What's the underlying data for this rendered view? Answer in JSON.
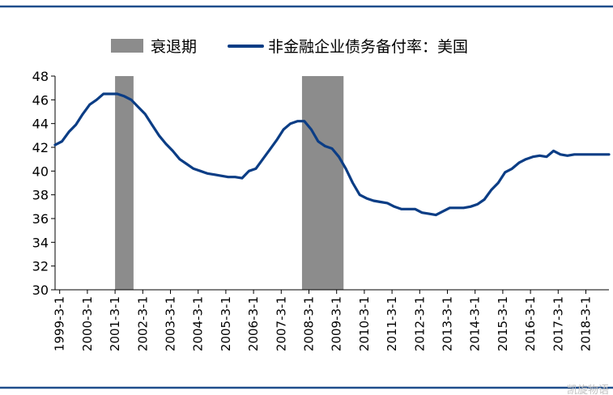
{
  "colors": {
    "rule": "#1f4e8c",
    "line": "#0b3d85",
    "recession": "#8c8c8c",
    "axis": "#000000",
    "text": "#000000"
  },
  "watermark": "凯旋物语",
  "chart_data": {
    "type": "line",
    "title": "",
    "xlabel": "",
    "ylabel": "",
    "ylim": [
      30,
      48
    ],
    "yticks": [
      30,
      32,
      34,
      36,
      38,
      40,
      42,
      44,
      46,
      48
    ],
    "grid": false,
    "legend_position": "top-center",
    "x_tick_labels": [
      "1999-3-1",
      "2000-3-1",
      "2001-3-1",
      "2002-3-1",
      "2003-3-1",
      "2004-3-1",
      "2005-3-1",
      "2006-3-1",
      "2007-3-1",
      "2008-3-1",
      "2009-3-1",
      "2010-3-1",
      "2011-3-1",
      "2012-3-1",
      "2013-3-1",
      "2014-3-1",
      "2015-3-1",
      "2016-3-1",
      "2017-3-1",
      "2018-3-1"
    ],
    "recession": {
      "name": "衰退期",
      "periods": [
        [
          "2001-03",
          "2001-11"
        ],
        [
          "2007-12",
          "2009-06"
        ]
      ]
    },
    "series": [
      {
        "name": "非金融企业债务备付率：美国",
        "x": [
          "1999-01",
          "1999-04",
          "1999-07",
          "1999-10",
          "2000-01",
          "2000-04",
          "2000-07",
          "2000-10",
          "2001-01",
          "2001-04",
          "2001-07",
          "2001-10",
          "2002-01",
          "2002-04",
          "2002-07",
          "2002-10",
          "2003-01",
          "2003-04",
          "2003-07",
          "2003-10",
          "2004-01",
          "2004-04",
          "2004-07",
          "2004-10",
          "2005-01",
          "2005-04",
          "2005-07",
          "2005-10",
          "2006-01",
          "2006-04",
          "2006-07",
          "2006-10",
          "2007-01",
          "2007-04",
          "2007-07",
          "2007-10",
          "2008-01",
          "2008-04",
          "2008-07",
          "2008-10",
          "2009-01",
          "2009-04",
          "2009-07",
          "2009-10",
          "2010-01",
          "2010-04",
          "2010-07",
          "2010-10",
          "2011-01",
          "2011-04",
          "2011-07",
          "2011-10",
          "2012-01",
          "2012-04",
          "2012-07",
          "2012-10",
          "2013-01",
          "2013-04",
          "2013-07",
          "2013-10",
          "2014-01",
          "2014-04",
          "2014-07",
          "2014-10",
          "2015-01",
          "2015-04",
          "2015-07",
          "2015-10",
          "2016-01",
          "2016-04",
          "2016-07",
          "2016-10",
          "2017-01",
          "2017-04",
          "2017-07",
          "2017-10",
          "2018-01",
          "2018-04",
          "2018-07",
          "2018-10",
          "2019-01"
        ],
        "values": [
          42.2,
          42.5,
          43.3,
          43.9,
          44.8,
          45.6,
          46.0,
          46.5,
          46.5,
          46.5,
          46.3,
          46.0,
          45.4,
          44.8,
          43.9,
          43.0,
          42.3,
          41.7,
          41.0,
          40.6,
          40.2,
          40.0,
          39.8,
          39.7,
          39.6,
          39.5,
          39.5,
          39.4,
          40.0,
          40.2,
          41.0,
          41.8,
          42.6,
          43.5,
          44.0,
          44.2,
          44.2,
          43.5,
          42.5,
          42.1,
          41.9,
          41.2,
          40.2,
          39.0,
          38.0,
          37.7,
          37.5,
          37.4,
          37.3,
          37.0,
          36.8,
          36.8,
          36.8,
          36.5,
          36.4,
          36.3,
          36.6,
          36.9,
          36.9,
          36.9,
          37.0,
          37.2,
          37.6,
          38.4,
          39.0,
          39.9,
          40.2,
          40.7,
          41.0,
          41.2,
          41.3,
          41.2,
          41.7,
          41.4,
          41.3,
          41.4,
          41.4,
          41.4,
          41.4,
          41.4,
          41.4
        ]
      }
    ]
  }
}
